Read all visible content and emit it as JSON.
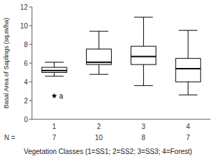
{
  "chart_data": {
    "type": "box",
    "categories": [
      "1",
      "2",
      "3",
      "4"
    ],
    "ylabel": "Basal Area of Saplings (sq.m/ha)",
    "xlabel": "Vegetation Classes (1=SS1; 2=SS2; 3=SS3; 4=Forest)",
    "n_label": "N =",
    "n": [
      7,
      10,
      8,
      7
    ],
    "whisker_low": [
      4.6,
      4.8,
      3.6,
      2.6
    ],
    "q1": [
      5.0,
      5.85,
      5.85,
      4.0
    ],
    "median": [
      5.2,
      6.1,
      6.7,
      5.4
    ],
    "q3": [
      5.55,
      7.5,
      7.8,
      6.5
    ],
    "whisker_high": [
      6.1,
      9.4,
      10.9,
      9.5
    ],
    "outliers": [
      [
        2.5
      ],
      [],
      [],
      []
    ],
    "outlier_labels": [
      [
        "a"
      ],
      [],
      [],
      []
    ],
    "marker": "star",
    "color": "black",
    "ylim": [
      0,
      12
    ],
    "yticks": [
      0,
      2,
      4,
      6,
      8,
      10,
      12
    ],
    "grid": false
  }
}
